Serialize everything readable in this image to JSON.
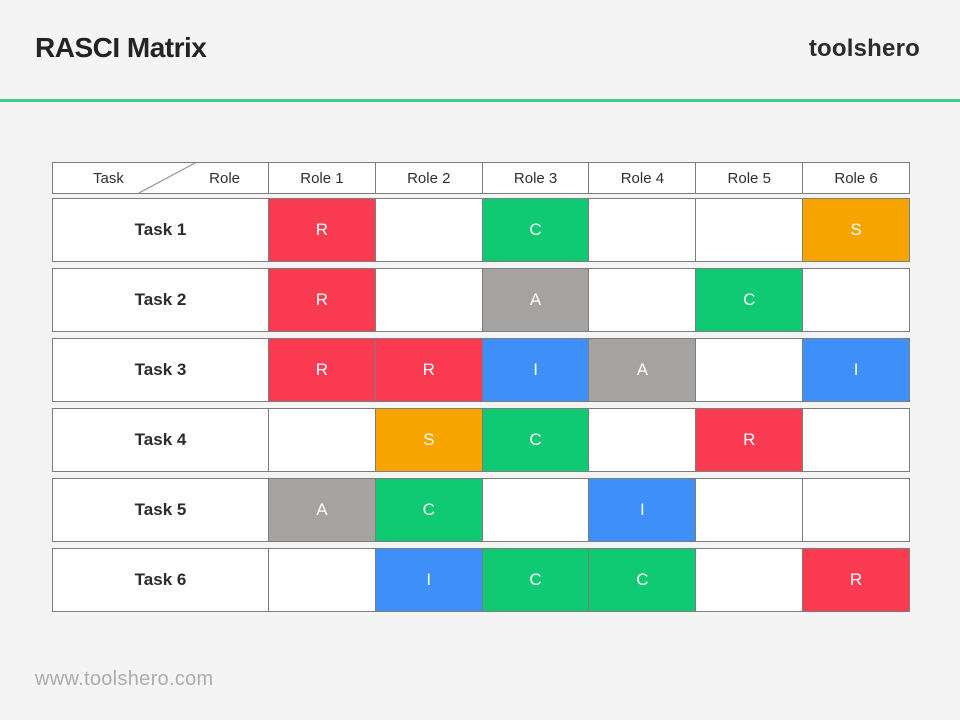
{
  "header": {
    "title": "RASCI Matrix",
    "brand": "toolshero"
  },
  "footer": {
    "url": "www.toolshero.com"
  },
  "colors": {
    "accent_line": "#38cf85",
    "R": "#fa3b52",
    "A": "#a5a3a2",
    "S": "#f7a400",
    "C": "#10c973",
    "I": "#3e8ff7"
  },
  "matrix": {
    "corner": {
      "row_axis_label": "Task",
      "col_axis_label": "Role"
    },
    "columns": [
      "Role 1",
      "Role 2",
      "Role 3",
      "Role 4",
      "Role 5",
      "Role 6"
    ],
    "rows": [
      {
        "task": "Task 1",
        "cells": [
          "R",
          "",
          "C",
          "",
          "",
          "S"
        ]
      },
      {
        "task": "Task 2",
        "cells": [
          "R",
          "",
          "A",
          "",
          "C",
          ""
        ]
      },
      {
        "task": "Task 3",
        "cells": [
          "R",
          "R",
          "I",
          "A",
          "",
          "I"
        ]
      },
      {
        "task": "Task 4",
        "cells": [
          "",
          "S",
          "C",
          "",
          "R",
          ""
        ]
      },
      {
        "task": "Task 5",
        "cells": [
          "A",
          "C",
          "",
          "I",
          "",
          ""
        ]
      },
      {
        "task": "Task 6",
        "cells": [
          "",
          "I",
          "C",
          "C",
          "",
          "R"
        ]
      }
    ]
  }
}
